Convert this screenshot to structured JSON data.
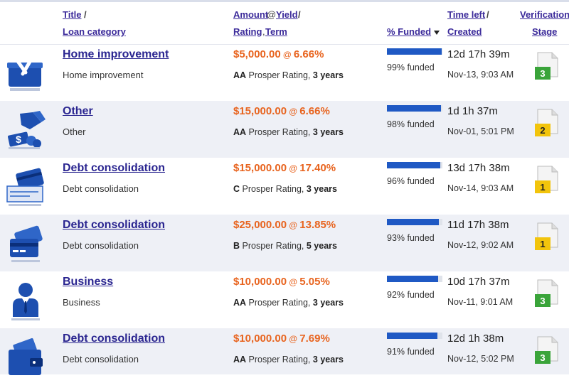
{
  "header": {
    "title_link": "Title",
    "loan_category_link": "Loan category",
    "amount_link": "Amount",
    "at_symbol": "@",
    "yield_link": "Yield",
    "rating_link": "Rating",
    "comma": ",",
    "term_link": "Term",
    "funded_link": "% Funded",
    "time_left_link": "Time left",
    "created_link": "Created",
    "verification_link": "Verification",
    "stage_link": "Stage",
    "slash": "/"
  },
  "colors": {
    "link": "#2a2590",
    "amount": "#e8641f",
    "bar_fill": "#1f59c4",
    "stage_green": "#3aa43a",
    "stage_yellow": "#f2c40c"
  },
  "loans": [
    {
      "title": "Home improvement",
      "category": "Home improvement",
      "amount": "$5,000.00",
      "at": "@",
      "yield": "6.66%",
      "rating": "AA",
      "rating_text": "Prosper Rating,",
      "term": "3 years",
      "funded_pct": 99,
      "funded_text": "99% funded",
      "time_left": "12d 17h 39m",
      "created": "Nov-13, 9:03 AM",
      "stage": "3",
      "stage_color": "green",
      "icon": "toolbox-icon"
    },
    {
      "title": "Other",
      "category": "Other",
      "amount": "$15,000.00",
      "at": "@",
      "yield": "6.66%",
      "rating": "AA",
      "rating_text": "Prosper Rating,",
      "term": "3 years",
      "funded_pct": 98,
      "funded_text": "98% funded",
      "time_left": "1d 1h 37m",
      "created": "Nov-01, 5:01 PM",
      "stage": "2",
      "stage_color": "yellow",
      "icon": "hand-money-icon"
    },
    {
      "title": "Debt consolidation",
      "category": "Debt consolidation",
      "amount": "$15,000.00",
      "at": "@",
      "yield": "17.40%",
      "rating": "C",
      "rating_text": "Prosper Rating,",
      "term": "3 years",
      "funded_pct": 96,
      "funded_text": "96% funded",
      "time_left": "13d 17h 38m",
      "created": "Nov-14, 9:03 AM",
      "stage": "1",
      "stage_color": "yellow",
      "icon": "credit-card-check-icon"
    },
    {
      "title": "Debt consolidation",
      "category": "Debt consolidation",
      "amount": "$25,000.00",
      "at": "@",
      "yield": "13.85%",
      "rating": "B",
      "rating_text": "Prosper Rating,",
      "term": "5 years",
      "funded_pct": 93,
      "funded_text": "93% funded",
      "time_left": "11d 17h 38m",
      "created": "Nov-12, 9:02 AM",
      "stage": "1",
      "stage_color": "yellow",
      "icon": "credit-cards-icon"
    },
    {
      "title": "Business",
      "category": "Business",
      "amount": "$10,000.00",
      "at": "@",
      "yield": "5.05%",
      "rating": "AA",
      "rating_text": "Prosper Rating,",
      "term": "3 years",
      "funded_pct": 92,
      "funded_text": "92% funded",
      "time_left": "10d 17h 37m",
      "created": "Nov-11, 9:01 AM",
      "stage": "3",
      "stage_color": "green",
      "icon": "businessman-icon"
    },
    {
      "title": "Debt consolidation",
      "category": "Debt consolidation",
      "amount": "$10,000.00",
      "at": "@",
      "yield": "7.69%",
      "rating": "AA",
      "rating_text": "Prosper Rating,",
      "term": "3 years",
      "funded_pct": 91,
      "funded_text": "91% funded",
      "time_left": "12d 1h 38m",
      "created": "Nov-12, 5:02 PM",
      "stage": "3",
      "stage_color": "green",
      "icon": "wallet-icon"
    }
  ]
}
